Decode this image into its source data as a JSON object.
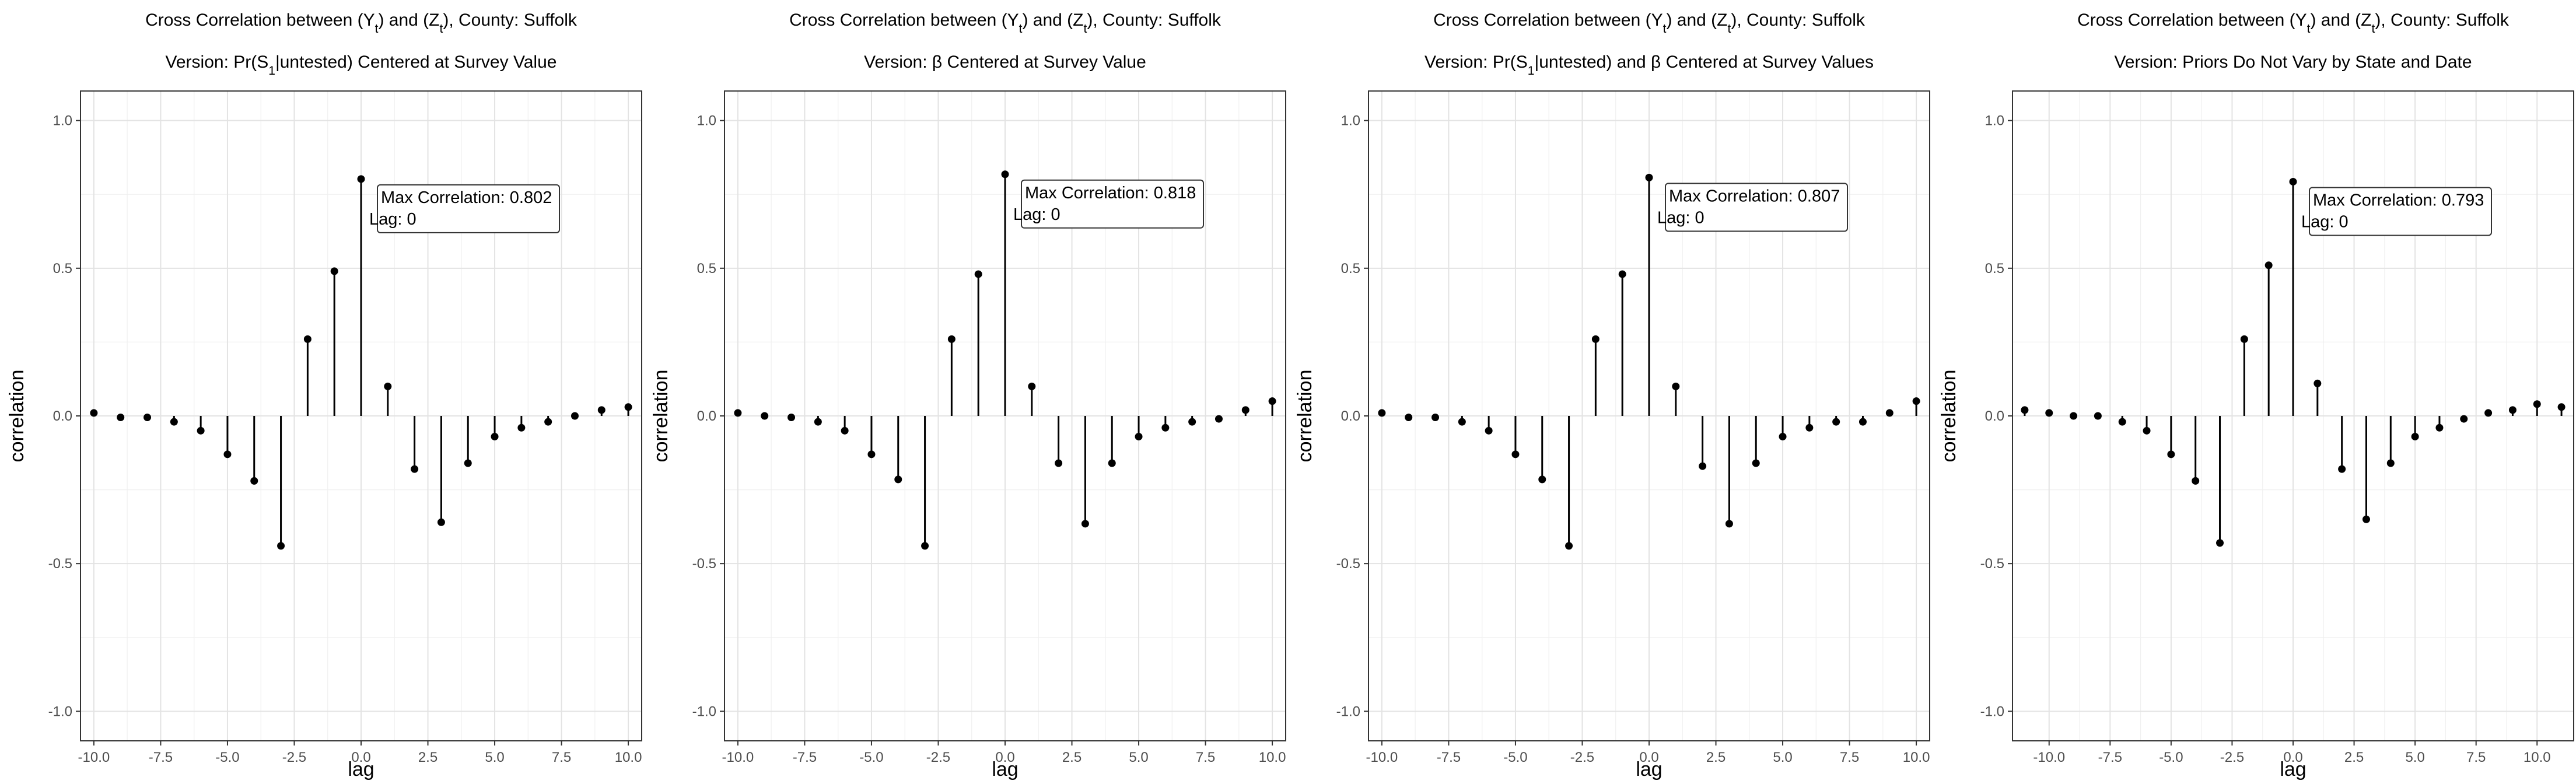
{
  "chart_data": [
    {
      "type": "stem",
      "title_line1_parts": [
        "Cross Correlation between (Y",
        "t",
        ") and (Z",
        "t",
        "), County: Suffolk"
      ],
      "title_line2_parts": [
        "Version: Pr(S",
        "1",
        "|untested) Centered at Survey Value"
      ],
      "xlabel": "lag",
      "ylabel": "correlation",
      "xlim": [
        -10.5,
        10.5
      ],
      "ylim": [
        -1.1,
        1.1
      ],
      "x_ticks": [
        -10,
        -7.5,
        -5,
        -2.5,
        0,
        2.5,
        5,
        7.5,
        10
      ],
      "x_tick_labels": [
        "-10.0",
        "-7.5",
        "-5.0",
        "-2.5",
        "0.0",
        "2.5",
        "5.0",
        "7.5",
        "10.0"
      ],
      "y_ticks": [
        -1,
        -0.5,
        0,
        0.5,
        1
      ],
      "y_tick_labels": [
        "-1.0",
        "-0.5",
        "0.0",
        "0.5",
        "1.0"
      ],
      "grid": true,
      "x": [
        -10,
        -9,
        -8,
        -7,
        -6,
        -5,
        -4,
        -3,
        -2,
        -1,
        0,
        1,
        2,
        3,
        4,
        5,
        6,
        7,
        8,
        9,
        10
      ],
      "values": [
        0.01,
        -0.005,
        -0.005,
        -0.02,
        -0.05,
        -0.13,
        -0.22,
        -0.44,
        0.26,
        0.49,
        0.802,
        0.1,
        -0.18,
        -0.36,
        -0.16,
        -0.07,
        -0.04,
        -0.02,
        0.0,
        0.02,
        0.03
      ],
      "annotation": {
        "line1": "Max Correlation: 0.802",
        "line2": "Lag: 0"
      }
    },
    {
      "type": "stem",
      "title_line1_parts": [
        "Cross Correlation between (Y",
        "t",
        ") and (Z",
        "t",
        "), County: Suffolk"
      ],
      "title_line2_parts": [
        "Version: β Centered at Survey Value"
      ],
      "xlabel": "lag",
      "ylabel": "correlation",
      "xlim": [
        -10.5,
        10.5
      ],
      "ylim": [
        -1.1,
        1.1
      ],
      "x_ticks": [
        -10,
        -7.5,
        -5,
        -2.5,
        0,
        2.5,
        5,
        7.5,
        10
      ],
      "x_tick_labels": [
        "-10.0",
        "-7.5",
        "-5.0",
        "-2.5",
        "0.0",
        "2.5",
        "5.0",
        "7.5",
        "10.0"
      ],
      "y_ticks": [
        -1,
        -0.5,
        0,
        0.5,
        1
      ],
      "y_tick_labels": [
        "-1.0",
        "-0.5",
        "0.0",
        "0.5",
        "1.0"
      ],
      "grid": true,
      "x": [
        -10,
        -9,
        -8,
        -7,
        -6,
        -5,
        -4,
        -3,
        -2,
        -1,
        0,
        1,
        2,
        3,
        4,
        5,
        6,
        7,
        8,
        9,
        10
      ],
      "values": [
        0.01,
        0.0,
        -0.005,
        -0.02,
        -0.05,
        -0.13,
        -0.215,
        -0.44,
        0.26,
        0.48,
        0.818,
        0.1,
        -0.16,
        -0.365,
        -0.16,
        -0.07,
        -0.04,
        -0.02,
        -0.01,
        0.02,
        0.05
      ],
      "annotation": {
        "line1": "Max Correlation: 0.818",
        "line2": "Lag: 0"
      }
    },
    {
      "type": "stem",
      "title_line1_parts": [
        "Cross Correlation between (Y",
        "t",
        ") and (Z",
        "t",
        "), County: Suffolk"
      ],
      "title_line2_parts": [
        "Version: Pr(S",
        "1",
        "|untested) and β Centered at Survey Values"
      ],
      "xlabel": "lag",
      "ylabel": "correlation",
      "xlim": [
        -10.5,
        10.5
      ],
      "ylim": [
        -1.1,
        1.1
      ],
      "x_ticks": [
        -10,
        -7.5,
        -5,
        -2.5,
        0,
        2.5,
        5,
        7.5,
        10
      ],
      "x_tick_labels": [
        "-10.0",
        "-7.5",
        "-5.0",
        "-2.5",
        "0.0",
        "2.5",
        "5.0",
        "7.5",
        "10.0"
      ],
      "y_ticks": [
        -1,
        -0.5,
        0,
        0.5,
        1
      ],
      "y_tick_labels": [
        "-1.0",
        "-0.5",
        "0.0",
        "0.5",
        "1.0"
      ],
      "grid": true,
      "x": [
        -10,
        -9,
        -8,
        -7,
        -6,
        -5,
        -4,
        -3,
        -2,
        -1,
        0,
        1,
        2,
        3,
        4,
        5,
        6,
        7,
        8,
        9,
        10
      ],
      "values": [
        0.01,
        -0.005,
        -0.005,
        -0.02,
        -0.05,
        -0.13,
        -0.215,
        -0.44,
        0.26,
        0.48,
        0.807,
        0.1,
        -0.17,
        -0.365,
        -0.16,
        -0.07,
        -0.04,
        -0.02,
        -0.02,
        0.01,
        0.05
      ],
      "annotation": {
        "line1": "Max Correlation: 0.807",
        "line2": "Lag: 0"
      }
    },
    {
      "type": "stem",
      "title_line1_parts": [
        "Cross Correlation between (Y",
        "t",
        ") and (Z",
        "t",
        "), County: Suffolk"
      ],
      "title_line2_parts": [
        "Version: Priors Do Not Vary by State and Date"
      ],
      "xlabel": "lag",
      "ylabel": "correlation",
      "xlim": [
        -11.5,
        11.5
      ],
      "ylim": [
        -1.1,
        1.1
      ],
      "x_ticks": [
        -10,
        -7.5,
        -5,
        -2.5,
        0,
        2.5,
        5,
        7.5,
        10
      ],
      "x_tick_labels": [
        "-10.0",
        "-7.5",
        "-5.0",
        "-2.5",
        "0.0",
        "2.5",
        "5.0",
        "7.5",
        "10.0"
      ],
      "y_ticks": [
        -1,
        -0.5,
        0,
        0.5,
        1
      ],
      "y_tick_labels": [
        "-1.0",
        "-0.5",
        "0.0",
        "0.5",
        "1.0"
      ],
      "grid": true,
      "x": [
        -11,
        -10,
        -9,
        -8,
        -7,
        -6,
        -5,
        -4,
        -3,
        -2,
        -1,
        0,
        1,
        2,
        3,
        4,
        5,
        6,
        7,
        8,
        9,
        10,
        11
      ],
      "values": [
        0.02,
        0.01,
        0.0,
        0.0,
        -0.02,
        -0.05,
        -0.13,
        -0.22,
        -0.43,
        0.26,
        0.51,
        0.793,
        0.11,
        -0.18,
        -0.35,
        -0.16,
        -0.07,
        -0.04,
        -0.01,
        0.01,
        0.02,
        0.04,
        0.03
      ],
      "annotation": {
        "line1": "Max Correlation: 0.793",
        "line2": "Lag: 0"
      }
    }
  ]
}
